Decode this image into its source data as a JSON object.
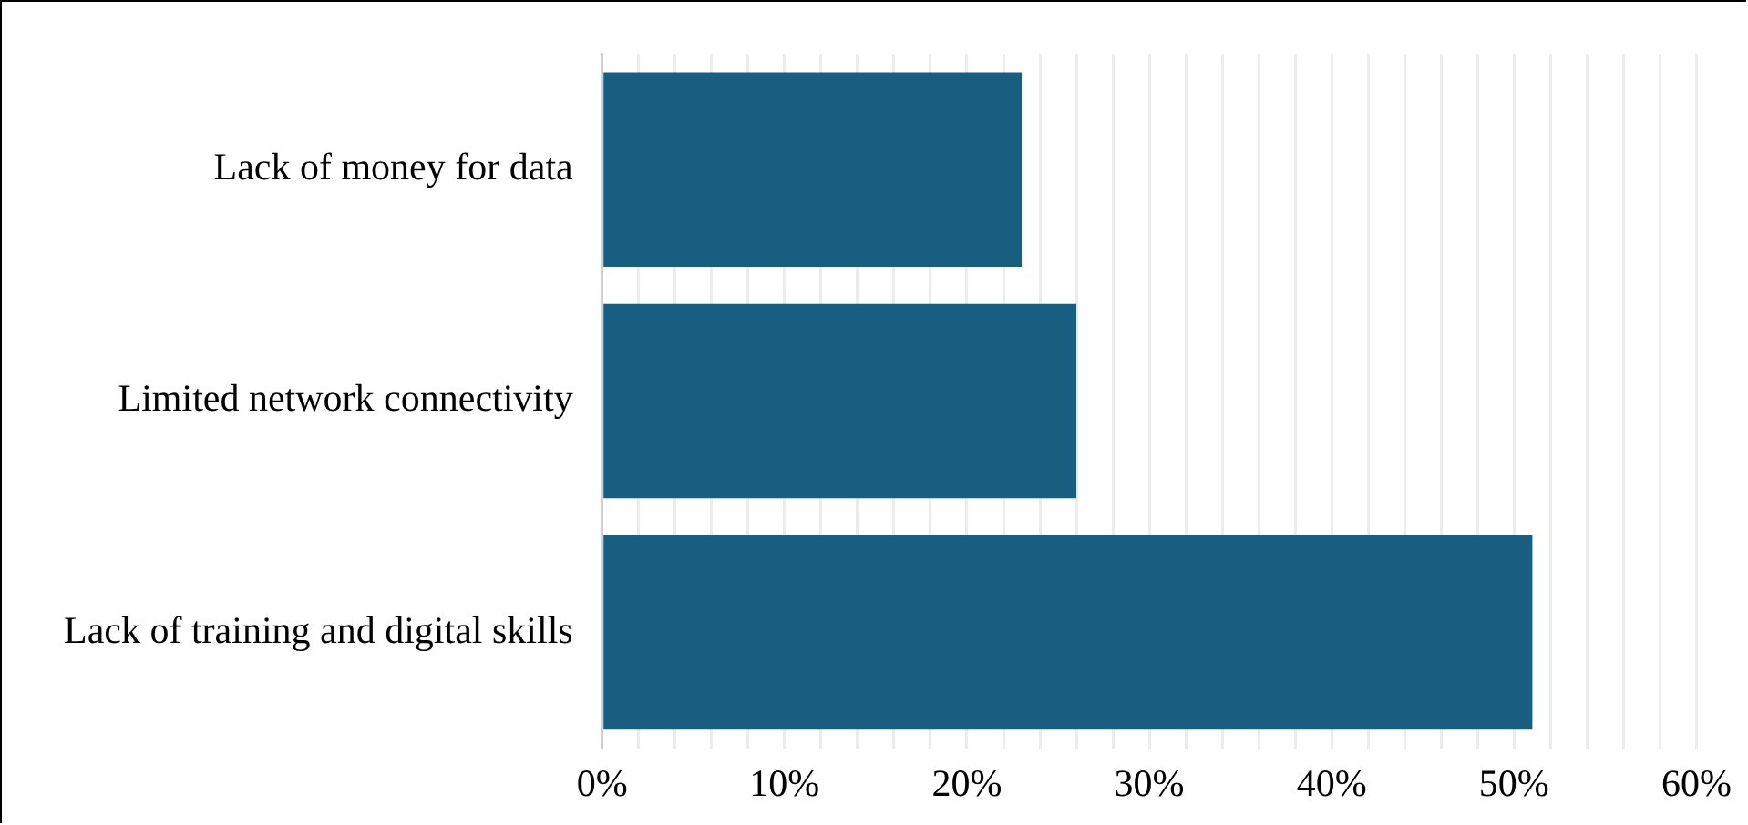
{
  "chart_data": {
    "type": "bar",
    "orientation": "horizontal",
    "categories": [
      "Lack of money for data",
      "Limited network connectivity",
      "Lack of training and digital skills"
    ],
    "values": [
      23,
      26,
      51
    ],
    "color": "#175e80",
    "xlim": [
      0,
      60
    ],
    "xticks": [
      {
        "value": 0,
        "label": "0%"
      },
      {
        "value": 2,
        "label": null
      },
      {
        "value": 4,
        "label": null
      },
      {
        "value": 6,
        "label": null
      },
      {
        "value": 8,
        "label": null
      },
      {
        "value": 10,
        "label": "10%"
      },
      {
        "value": 12,
        "label": null
      },
      {
        "value": 14,
        "label": null
      },
      {
        "value": 16,
        "label": null
      },
      {
        "value": 18,
        "label": null
      },
      {
        "value": 20,
        "label": "20%"
      },
      {
        "value": 22,
        "label": null
      },
      {
        "value": 24,
        "label": null
      },
      {
        "value": 26,
        "label": null
      },
      {
        "value": 28,
        "label": null
      },
      {
        "value": 30,
        "label": "30%"
      },
      {
        "value": 32,
        "label": null
      },
      {
        "value": 34,
        "label": null
      },
      {
        "value": 36,
        "label": null
      },
      {
        "value": 38,
        "label": null
      },
      {
        "value": 40,
        "label": "40%"
      },
      {
        "value": 42,
        "label": null
      },
      {
        "value": 44,
        "label": null
      },
      {
        "value": 46,
        "label": null
      },
      {
        "value": 48,
        "label": null
      },
      {
        "value": 50,
        "label": "50%"
      },
      {
        "value": 52,
        "label": null
      },
      {
        "value": 54,
        "label": null
      },
      {
        "value": 56,
        "label": null
      },
      {
        "value": 58,
        "label": null
      },
      {
        "value": 60,
        "label": "60%"
      }
    ],
    "grid": "x"
  }
}
